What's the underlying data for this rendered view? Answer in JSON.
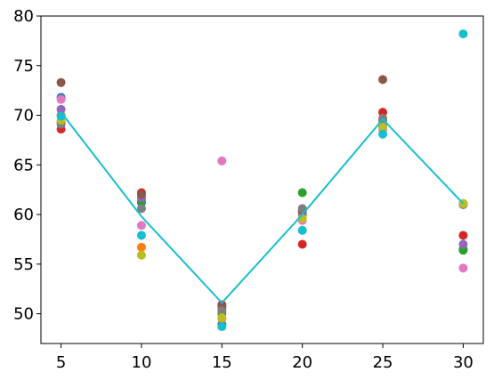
{
  "chart_data": {
    "type": "scatter",
    "title": "",
    "xlabel": "",
    "ylabel": "",
    "xlim": [
      3.75,
      31.25
    ],
    "ylim": [
      47,
      80
    ],
    "xticks": [
      5,
      10,
      15,
      20,
      25,
      30
    ],
    "yticks": [
      50,
      55,
      60,
      65,
      70,
      75,
      80
    ],
    "grid": false,
    "legend": "none",
    "line": {
      "color": "#17becf",
      "x": [
        5,
        10,
        15,
        20,
        25,
        30
      ],
      "y": [
        70.3,
        59.8,
        51.1,
        60.0,
        69.6,
        61.1
      ]
    },
    "series": [
      {
        "color": "#1f77b4",
        "points": [
          [
            5,
            71.8
          ],
          [
            10,
            61.2
          ],
          [
            15,
            48.9
          ],
          [
            20,
            60.3
          ],
          [
            25,
            68.9
          ],
          [
            30,
            56.5
          ]
        ]
      },
      {
        "color": "#ff7f0e",
        "points": [
          [
            5,
            70.0
          ],
          [
            10,
            56.7
          ],
          [
            15,
            49.5
          ],
          [
            20,
            59.9
          ],
          [
            25,
            69.2
          ],
          [
            30,
            61.0
          ]
        ]
      },
      {
        "color": "#2ca02c",
        "points": [
          [
            5,
            69.3
          ],
          [
            10,
            61.4
          ],
          [
            15,
            50.0
          ],
          [
            20,
            62.2
          ],
          [
            25,
            69.5
          ],
          [
            30,
            56.4
          ]
        ]
      },
      {
        "color": "#d62728",
        "points": [
          [
            5,
            68.6
          ],
          [
            10,
            62.2
          ],
          [
            15,
            50.9
          ],
          [
            20,
            57.0
          ],
          [
            25,
            70.3
          ],
          [
            30,
            57.9
          ]
        ]
      },
      {
        "color": "#9467bd",
        "points": [
          [
            5,
            70.6
          ],
          [
            10,
            61.7
          ],
          [
            15,
            50.5
          ],
          [
            20,
            60.1
          ],
          [
            25,
            69.0
          ],
          [
            30,
            57.0
          ]
        ]
      },
      {
        "color": "#8c564b",
        "points": [
          [
            5,
            73.3
          ],
          [
            10,
            62.0
          ],
          [
            15,
            50.7
          ],
          [
            20,
            60.4
          ],
          [
            25,
            73.6
          ],
          [
            30,
            61.1
          ]
        ]
      },
      {
        "color": "#e377c2",
        "points": [
          [
            5,
            71.6
          ],
          [
            10,
            58.9
          ],
          [
            15,
            65.4
          ],
          [
            20,
            59.4
          ],
          [
            25,
            68.6
          ],
          [
            30,
            54.6
          ]
        ]
      },
      {
        "color": "#7f7f7f",
        "points": [
          [
            5,
            69.1
          ],
          [
            10,
            60.6
          ],
          [
            15,
            50.3
          ],
          [
            20,
            60.6
          ],
          [
            25,
            69.7
          ],
          [
            30,
            61.0
          ]
        ]
      },
      {
        "color": "#bcbd22",
        "points": [
          [
            5,
            69.5
          ],
          [
            10,
            55.9
          ],
          [
            15,
            49.6
          ],
          [
            20,
            59.6
          ],
          [
            25,
            68.8
          ],
          [
            30,
            61.1
          ]
        ]
      },
      {
        "color": "#17becf",
        "points": [
          [
            5,
            69.9
          ],
          [
            10,
            57.9
          ],
          [
            15,
            48.7
          ],
          [
            20,
            58.4
          ],
          [
            25,
            68.1
          ],
          [
            30,
            78.2
          ]
        ]
      }
    ]
  }
}
